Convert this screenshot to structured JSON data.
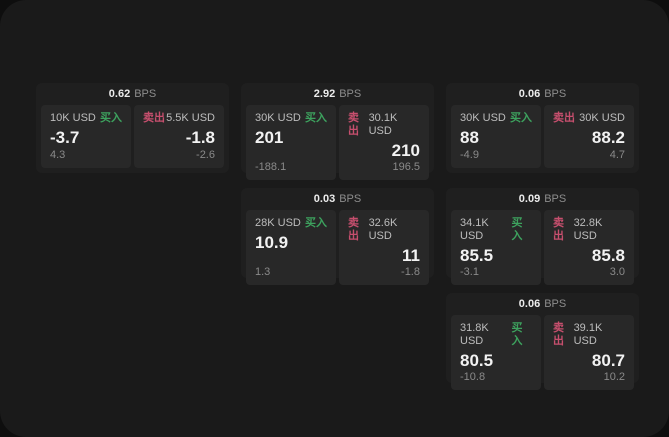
{
  "labels": {
    "bps": "BPS",
    "buy": "买入",
    "sell": "卖出"
  },
  "colors": {
    "outer_bg": "#0e0e0e",
    "panel_bg": "#1a1a1a",
    "card_bg": "#1f1f1f",
    "tile_bg": "#282828",
    "buy_green": "#3da25e",
    "sell_red": "#c74f6e"
  },
  "cards": [
    {
      "bps": "0.62",
      "buy": {
        "amount": "10K USD",
        "price": "-3.7",
        "delta": "4.3"
      },
      "sell": {
        "amount": "5.5K USD",
        "price": "-1.8",
        "delta": "-2.6"
      }
    },
    {
      "bps": "2.92",
      "buy": {
        "amount": "30K USD",
        "price": "201",
        "delta": "-188.1"
      },
      "sell": {
        "amount": "30.1K USD",
        "price": "210",
        "delta": "196.5"
      }
    },
    {
      "bps": "0.06",
      "buy": {
        "amount": "30K USD",
        "price": "88",
        "delta": "-4.9"
      },
      "sell": {
        "amount": "30K USD",
        "price": "88.2",
        "delta": "4.7"
      }
    },
    {
      "bps": "0.03",
      "buy": {
        "amount": "28K USD",
        "price": "10.9",
        "delta": "1.3"
      },
      "sell": {
        "amount": "32.6K USD",
        "price": "11",
        "delta": "-1.8"
      }
    },
    {
      "bps": "0.09",
      "buy": {
        "amount": "34.1K USD",
        "price": "85.5",
        "delta": "-3.1"
      },
      "sell": {
        "amount": "32.8K USD",
        "price": "85.8",
        "delta": "3.0"
      }
    },
    {
      "bps": "0.06",
      "buy": {
        "amount": "31.8K USD",
        "price": "80.5",
        "delta": "-10.8"
      },
      "sell": {
        "amount": "39.1K USD",
        "price": "80.7",
        "delta": "10.2"
      }
    }
  ]
}
